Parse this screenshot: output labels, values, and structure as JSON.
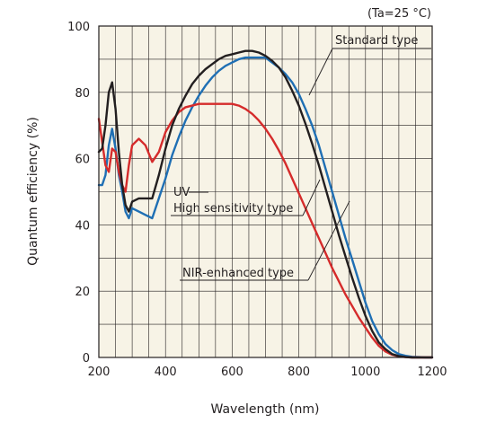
{
  "chart_data": {
    "type": "line",
    "condition": "(Ta=25 °C)",
    "xlabel": "Wavelength (nm)",
    "ylabel": "Quantum efficiency (%)",
    "xlim": [
      200,
      1200
    ],
    "ylim": [
      0,
      100
    ],
    "xticks": [
      "200",
      "400",
      "600",
      "800",
      "1000",
      "1200"
    ],
    "yticks": [
      "0",
      "20",
      "40",
      "60",
      "80",
      "100"
    ],
    "grid": true,
    "background": "#f7f3e6",
    "annotations": {
      "uv": "UV",
      "standard": "Standard type",
      "high": "High sensitivity type",
      "nir": "NIR-enhanced type"
    },
    "series": [
      {
        "name": "Standard type",
        "color": "#1f6fb4",
        "x": [
          200,
          210,
          220,
          230,
          240,
          250,
          260,
          270,
          280,
          290,
          300,
          320,
          340,
          360,
          380,
          400,
          420,
          440,
          460,
          480,
          500,
          520,
          540,
          560,
          580,
          600,
          620,
          640,
          660,
          680,
          700,
          720,
          740,
          760,
          780,
          800,
          820,
          840,
          860,
          880,
          900,
          920,
          940,
          960,
          980,
          1000,
          1020,
          1040,
          1060,
          1080,
          1100,
          1120,
          1140,
          1160,
          1180,
          1200
        ],
        "y": [
          52,
          52,
          55,
          64,
          69,
          63,
          55,
          50,
          44,
          42,
          45,
          44,
          43,
          42,
          48,
          54,
          61,
          66.5,
          71.5,
          75.5,
          79,
          82,
          84.5,
          86.5,
          88,
          89,
          90,
          90.5,
          90.5,
          90.5,
          90.5,
          89,
          87.5,
          85.5,
          83,
          79.5,
          75,
          70,
          64,
          57,
          50,
          43,
          36,
          29.5,
          23,
          16.5,
          11,
          7,
          4,
          2.2,
          1,
          0.5,
          0.2,
          0.1,
          0,
          0
        ]
      },
      {
        "name": "High sensitivity type",
        "color": "#231f20",
        "x": [
          200,
          210,
          220,
          230,
          240,
          250,
          260,
          270,
          280,
          290,
          300,
          320,
          340,
          360,
          380,
          400,
          420,
          440,
          460,
          480,
          500,
          520,
          540,
          560,
          580,
          600,
          620,
          640,
          660,
          680,
          700,
          720,
          740,
          760,
          780,
          800,
          820,
          840,
          860,
          880,
          900,
          920,
          940,
          960,
          980,
          1000,
          1020,
          1040,
          1060,
          1080,
          1100,
          1120,
          1140,
          1160,
          1180,
          1200
        ],
        "y": [
          62,
          63,
          70,
          80,
          83,
          75,
          62,
          52,
          46,
          44,
          47,
          48,
          48,
          48,
          55,
          63,
          70,
          75,
          79,
          82.5,
          85,
          87,
          88.5,
          90,
          91,
          91.5,
          92,
          92.5,
          92.5,
          92,
          91,
          89.5,
          87.5,
          84.5,
          80.5,
          76,
          70.5,
          64.5,
          58,
          51,
          44,
          37,
          30.5,
          24,
          18,
          12.5,
          8,
          4.5,
          2.5,
          1,
          0.4,
          0.1,
          0,
          0,
          0,
          0
        ]
      },
      {
        "name": "NIR-enhanced type",
        "color": "#d52b2b",
        "x": [
          200,
          210,
          220,
          230,
          240,
          250,
          260,
          270,
          280,
          290,
          300,
          320,
          340,
          360,
          380,
          400,
          420,
          440,
          460,
          480,
          500,
          520,
          540,
          560,
          580,
          600,
          620,
          640,
          660,
          680,
          700,
          720,
          740,
          760,
          780,
          800,
          820,
          840,
          860,
          880,
          900,
          920,
          940,
          960,
          980,
          1000,
          1020,
          1040,
          1060,
          1080,
          1100,
          1120,
          1140,
          1160,
          1180,
          1200
        ],
        "y": [
          72,
          65,
          58,
          56,
          63,
          62,
          56,
          52,
          50,
          58,
          64,
          66,
          64,
          59,
          62,
          68,
          71.5,
          74,
          75.5,
          76,
          76.5,
          76.5,
          76.5,
          76.5,
          76.5,
          76.5,
          76,
          75,
          73.5,
          71.5,
          69,
          66,
          62.5,
          58.5,
          54,
          49.5,
          45,
          40.5,
          36,
          31.5,
          27,
          23,
          19,
          15.5,
          12,
          9,
          6,
          3.5,
          1.8,
          0.8,
          0.3,
          0.1,
          0,
          0,
          0,
          0
        ]
      }
    ]
  }
}
